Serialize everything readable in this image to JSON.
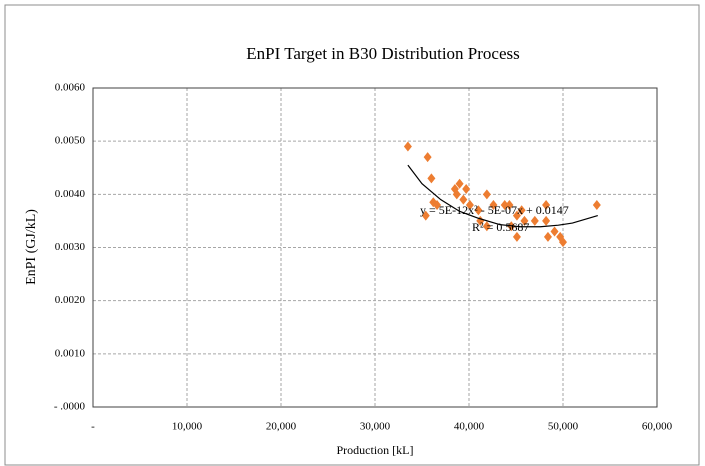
{
  "chart_data": {
    "type": "scatter",
    "title": "EnPI Target in B30 Distribution Process",
    "xlabel": "Production [kL]",
    "ylabel": "EnPI (GJ/kL)",
    "color": "#ed7d31",
    "grid": true,
    "xlim": [
      0,
      60000
    ],
    "ylim": [
      0,
      0.006
    ],
    "xticks": [
      {
        "value": 0,
        "label": "-"
      },
      {
        "value": 10000,
        "label": "10,000"
      },
      {
        "value": 20000,
        "label": "20,000"
      },
      {
        "value": 30000,
        "label": "30,000"
      },
      {
        "value": 40000,
        "label": "40,000"
      },
      {
        "value": 50000,
        "label": "50,000"
      },
      {
        "value": 60000,
        "label": "60,000"
      }
    ],
    "yticks": [
      {
        "value": 0,
        "label": "- .0000"
      },
      {
        "value": 0.001,
        "label": "0.0010"
      },
      {
        "value": 0.002,
        "label": "0.0020"
      },
      {
        "value": 0.003,
        "label": "0.0030"
      },
      {
        "value": 0.004,
        "label": "0.0040"
      },
      {
        "value": 0.005,
        "label": "0.0050"
      },
      {
        "value": 0.006,
        "label": "0.0060"
      }
    ],
    "x": [
      33500,
      35600,
      36000,
      36200,
      36600,
      35400,
      38500,
      39000,
      39700,
      38700,
      39400,
      40100,
      41000,
      41900,
      42600,
      43800,
      41200,
      41900,
      44300,
      45100,
      45600,
      45900,
      47000,
      48200,
      48200,
      48400,
      49100,
      49700,
      50000,
      45100,
      53600,
      44500
    ],
    "y": [
      0.0049,
      0.0047,
      0.0043,
      0.00385,
      0.0038,
      0.0036,
      0.0041,
      0.0042,
      0.0041,
      0.004,
      0.0039,
      0.0038,
      0.0037,
      0.004,
      0.0038,
      0.0038,
      0.0035,
      0.0034,
      0.0038,
      0.0036,
      0.0037,
      0.0035,
      0.0035,
      0.0035,
      0.0038,
      0.0032,
      0.0033,
      0.0032,
      0.0031,
      0.0032,
      0.0038,
      0.0034
    ],
    "trendline": {
      "x": [
        33500,
        35000,
        37000,
        39000,
        41000,
        43300,
        45500,
        47600,
        49500,
        51000,
        53700
      ],
      "y": [
        0.00455,
        0.0042,
        0.0039,
        0.00368,
        0.00355,
        0.00343,
        0.00339,
        0.00339,
        0.00342,
        0.00346,
        0.0036
      ]
    },
    "annotations": [
      "y = 5E-12x² - 5E-07x + 0.0147",
      "R² = 0.5687"
    ]
  }
}
